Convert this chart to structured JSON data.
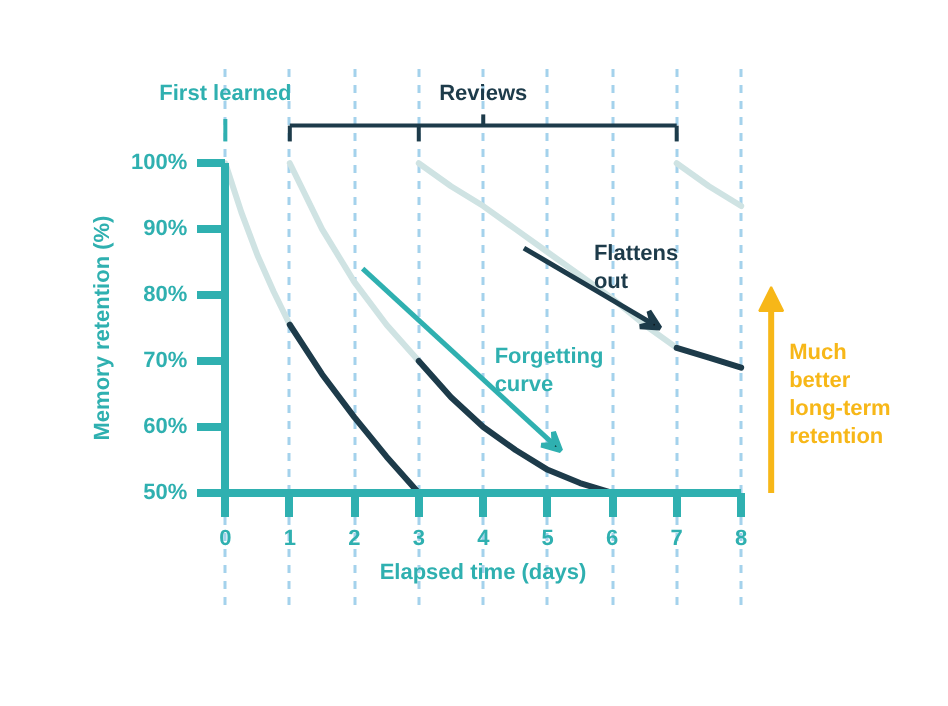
{
  "chart_data": {
    "type": "line",
    "xlabel": "Elapsed time (days)",
    "ylabel": "Memory retention (%)",
    "xlim": [
      0,
      8
    ],
    "xticks": [
      0,
      1,
      2,
      3,
      4,
      5,
      6,
      7,
      8
    ],
    "ylim": [
      50,
      100
    ],
    "yticks": [
      {
        "value": 50,
        "label": "50%"
      },
      {
        "value": 60,
        "label": "60%"
      },
      {
        "value": 70,
        "label": "70%"
      },
      {
        "value": 80,
        "label": "80%"
      },
      {
        "value": 90,
        "label": "90%"
      },
      {
        "value": 100,
        "label": "100%"
      }
    ],
    "grid": "x",
    "series": [
      {
        "color": "#cfe3e3",
        "x": [
          0,
          0.25,
          0.5,
          0.75,
          1
        ],
        "values": [
          100,
          92.5,
          86,
          80.5,
          75.5
        ]
      },
      {
        "color": "#1d3b4a",
        "x": [
          1,
          1.5,
          2,
          2.5,
          3
        ],
        "values": [
          75.5,
          68,
          61.5,
          55.5,
          50
        ]
      },
      {
        "color": "#cfe3e3",
        "x": [
          1,
          1.5,
          2,
          2.5,
          3
        ],
        "values": [
          100,
          90,
          82,
          75.5,
          70
        ]
      },
      {
        "color": "#1d3b4a",
        "x": [
          3,
          3.5,
          4,
          4.5,
          5,
          5.5,
          6
        ],
        "values": [
          70,
          64.5,
          60,
          56.5,
          53.5,
          51.5,
          50
        ]
      },
      {
        "color": "#cfe3e3",
        "x": [
          3,
          3.5,
          4,
          4.5,
          5,
          5.5,
          6,
          6.5,
          7
        ],
        "values": [
          100,
          96.5,
          93.5,
          90,
          86.5,
          83,
          79.5,
          75.5,
          72
        ]
      },
      {
        "color": "#1d3b4a",
        "x": [
          7,
          7.5,
          8
        ],
        "values": [
          72,
          70.5,
          69
        ]
      },
      {
        "color": "#cfe3e3",
        "x": [
          7,
          7.5,
          8
        ],
        "values": [
          100,
          96.5,
          93.5
        ]
      }
    ],
    "annotations": [
      "First learned",
      "Reviews",
      {
        "text": "Flattens out",
        "x": 6.74,
        "y": 75
      },
      "Forgetting curve",
      "Much better long-term retention"
    ]
  }
}
